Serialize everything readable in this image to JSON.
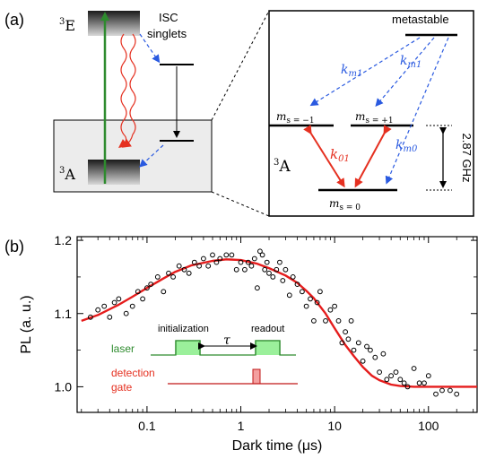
{
  "panel_a": {
    "label": "(a)",
    "level_3E": "E",
    "level_3A": "A",
    "superscript": "3",
    "isc_line1": "ISC",
    "isc_line2": "singlets",
    "inset": {
      "metastable": "metastable",
      "ms_minus1": "m",
      "ms_minus1_val": "s = −1",
      "ms_plus1": "m",
      "ms_plus1_val": "s = +1",
      "ms_zero": "m",
      "ms_zero_val": "s = 0",
      "ground": "A",
      "k_m1_left": "k",
      "k_m1_left_sub": "m1",
      "k_m1_right": "k",
      "k_m1_right_sub": "m1",
      "k_m0": "k",
      "k_m0_sub": "m0",
      "k_01": "k",
      "k_01_sub": "01",
      "splitting": "2.87 GHz"
    },
    "colors": {
      "pump": "#2e8b2e",
      "emission": "#e53020",
      "isc": "#2a5ae0"
    }
  },
  "panel_b": {
    "label": "(b)",
    "inset": {
      "laser": "laser",
      "initialization": "initialization",
      "readout": "readout",
      "tau": "τ",
      "detection_line1": "detection",
      "detection_line2": "gate"
    }
  },
  "chart_data": {
    "type": "scatter",
    "xlabel": "Dark time (μs)",
    "ylabel": "PL (a. u.)",
    "x_scale": "log",
    "xlim": [
      0.018,
      330
    ],
    "ylim": [
      0.965,
      1.205
    ],
    "xticks": [
      0.1,
      1,
      10,
      100
    ],
    "xtick_labels": [
      "0.1",
      "1",
      "10",
      "100"
    ],
    "yticks": [
      1.0,
      1.1,
      1.2
    ],
    "ytick_labels": [
      "1.0",
      "1.1",
      "1.2"
    ],
    "grid": false,
    "series": [
      {
        "kind": "points",
        "marker": "open-circle",
        "color": "#000000",
        "x": [
          0.025,
          0.03,
          0.035,
          0.04,
          0.045,
          0.05,
          0.06,
          0.07,
          0.08,
          0.09,
          0.1,
          0.11,
          0.13,
          0.15,
          0.17,
          0.19,
          0.22,
          0.25,
          0.28,
          0.32,
          0.36,
          0.4,
          0.45,
          0.5,
          0.55,
          0.6,
          0.7,
          0.8,
          0.9,
          1.0,
          1.1,
          1.2,
          1.3,
          1.4,
          1.5,
          1.6,
          1.7,
          1.8,
          1.9,
          2.0,
          2.2,
          2.4,
          2.6,
          2.8,
          3.0,
          3.3,
          3.6,
          4.0,
          4.5,
          5.0,
          5.5,
          6.0,
          6.5,
          7.0,
          8.0,
          9.0,
          10,
          11,
          12,
          13,
          14,
          15,
          16,
          18,
          20,
          22,
          24,
          27,
          30,
          33,
          36,
          40,
          45,
          50,
          55,
          60,
          70,
          80,
          90,
          100,
          120,
          140,
          170,
          200
        ],
        "y": [
          1.095,
          1.105,
          1.11,
          1.095,
          1.115,
          1.12,
          1.1,
          1.11,
          1.13,
          1.12,
          1.135,
          1.14,
          1.15,
          1.13,
          1.155,
          1.15,
          1.165,
          1.16,
          1.155,
          1.17,
          1.165,
          1.175,
          1.165,
          1.18,
          1.17,
          1.175,
          1.18,
          1.18,
          1.16,
          1.17,
          1.16,
          1.17,
          1.165,
          1.175,
          1.135,
          1.185,
          1.18,
          1.16,
          1.17,
          1.155,
          1.15,
          1.16,
          1.17,
          1.145,
          1.16,
          1.125,
          1.15,
          1.14,
          1.13,
          1.11,
          1.12,
          1.09,
          1.115,
          1.13,
          1.09,
          1.105,
          1.11,
          1.09,
          1.06,
          1.075,
          1.065,
          1.09,
          1.05,
          1.06,
          1.035,
          1.055,
          1.05,
          1.04,
          1.02,
          1.045,
          1.01,
          1.015,
          1.02,
          1.01,
          1.005,
          1.0,
          1.025,
          1.005,
          1.005,
          1.015,
          0.99,
          0.995,
          0.995,
          0.99
        ]
      },
      {
        "kind": "fit",
        "color": "#e51c1c",
        "x": [
          0.02,
          0.03,
          0.05,
          0.07,
          0.1,
          0.15,
          0.2,
          0.3,
          0.5,
          0.7,
          1.0,
          1.5,
          2.0,
          3.0,
          4.0,
          5.0,
          6.0,
          8.0,
          10,
          13,
          16,
          20,
          25,
          30,
          40,
          50,
          70,
          100,
          150,
          200,
          330
        ],
        "y": [
          1.09,
          1.098,
          1.112,
          1.123,
          1.135,
          1.148,
          1.157,
          1.166,
          1.172,
          1.174,
          1.173,
          1.168,
          1.162,
          1.152,
          1.142,
          1.131,
          1.121,
          1.1,
          1.08,
          1.057,
          1.042,
          1.027,
          1.015,
          1.009,
          1.003,
          1.001,
          1.0,
          1.0,
          1.0,
          1.0,
          1.0
        ]
      }
    ]
  }
}
